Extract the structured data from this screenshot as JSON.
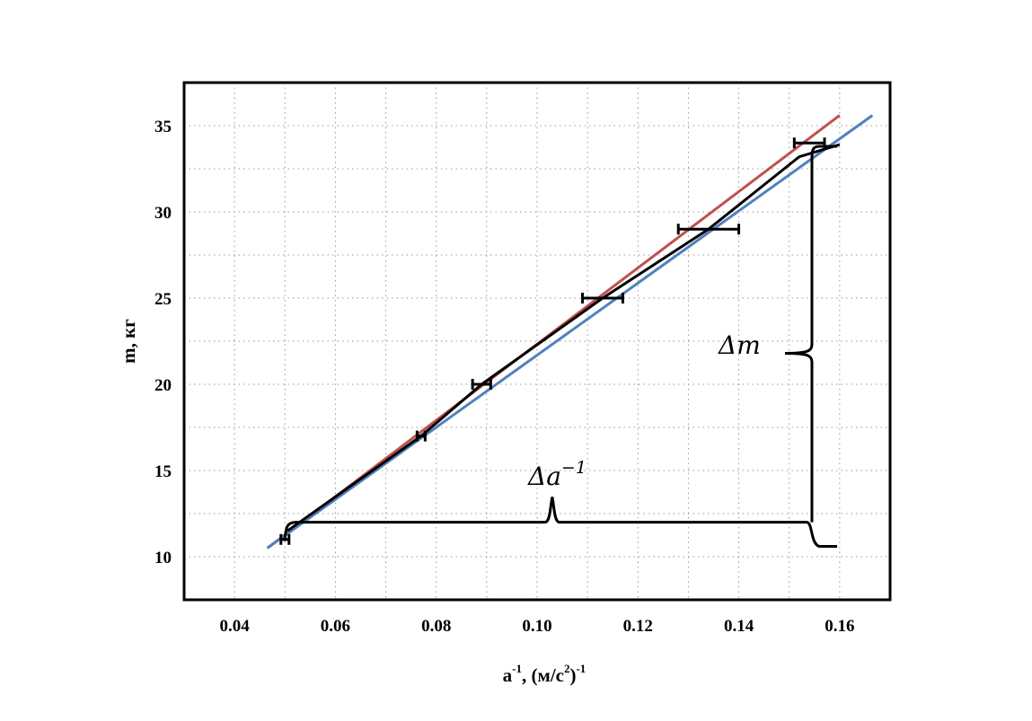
{
  "chart_data": {
    "type": "scatter",
    "xlim": [
      0.03,
      0.17
    ],
    "ylim": [
      7.5,
      37.5
    ],
    "x_ticks": [
      0.04,
      0.06,
      0.08,
      0.1,
      0.12,
      0.14,
      0.16
    ],
    "x_tick_labels": [
      "0.04",
      "0.06",
      "0.08",
      "0.10",
      "0.12",
      "0.14",
      "0.16"
    ],
    "y_ticks": [
      10,
      15,
      20,
      25,
      30,
      35
    ],
    "y_tick_labels": [
      "10",
      "15",
      "20",
      "25",
      "30",
      "35"
    ],
    "xlabel": {
      "main": "a",
      "sup1": "-1",
      "mid": ", (м/с",
      "sup2": "2",
      "end": ")",
      "sup3": "-1"
    },
    "ylabel": "m, кг",
    "grid": true,
    "points": [
      {
        "x": 0.05,
        "y": 11,
        "xerr": 0.0008
      },
      {
        "x": 0.077,
        "y": 17,
        "xerr": 0.0008
      },
      {
        "x": 0.089,
        "y": 20,
        "xerr": 0.0018
      },
      {
        "x": 0.113,
        "y": 25,
        "xerr": 0.004
      },
      {
        "x": 0.134,
        "y": 29,
        "xerr": 0.006
      },
      {
        "x": 0.154,
        "y": 34,
        "xerr": 0.003
      }
    ],
    "series": [
      {
        "color": "#c0504d",
        "points": [
          [
            0.0465,
            10.5
          ],
          [
            0.16,
            35.6
          ]
        ]
      },
      {
        "color": "#4f81bd",
        "points": [
          [
            0.0465,
            10.5
          ],
          [
            0.1665,
            35.6
          ]
        ]
      },
      {
        "color": "#000000",
        "points": [
          [
            0.0505,
            11.5
          ],
          [
            0.077,
            17.0
          ],
          [
            0.089,
            20.0
          ],
          [
            0.113,
            25.0
          ],
          [
            0.134,
            29.0
          ],
          [
            0.152,
            33.2
          ],
          [
            0.16,
            33.9
          ]
        ]
      }
    ],
    "annotations": {
      "delta_m": "Δm",
      "delta_a": "Δa",
      "delta_a_sup": "−1"
    }
  }
}
